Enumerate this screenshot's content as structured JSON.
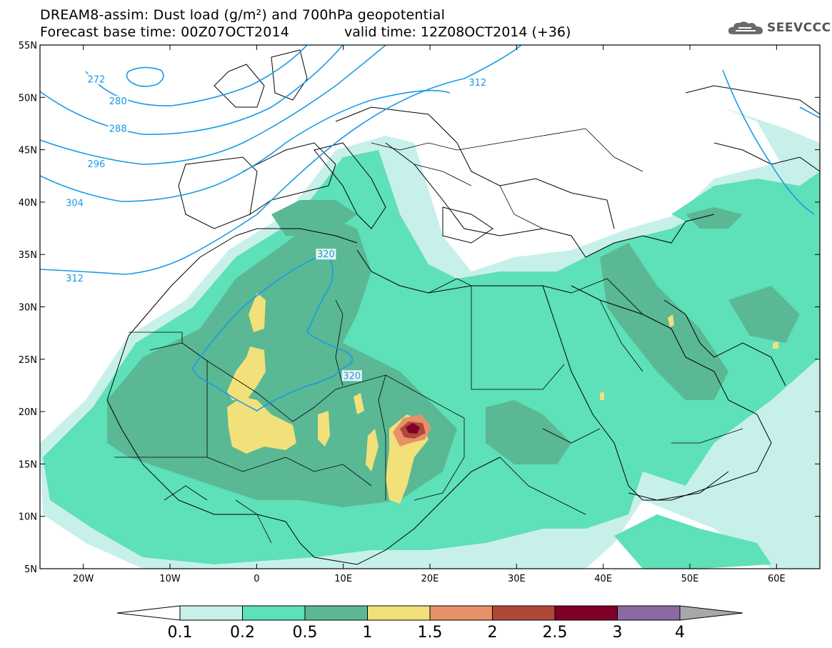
{
  "header": {
    "title": "DREAM8-assim: Dust load (g/m²) and 700hPa geopotential",
    "forecast_base": "Forecast base time: 00Z07OCT2014",
    "valid_time": "valid time: 12Z08OCT2014 (+36)",
    "logo_text": "SEEVCCC",
    "logo_icon": "cloud-icon"
  },
  "chart_data": {
    "type": "heatmap",
    "lon_range": [
      -25,
      65
    ],
    "lat_range": [
      5,
      55
    ],
    "lat_ticks": [
      {
        "value": 55,
        "label": "55N"
      },
      {
        "value": 50,
        "label": "50N"
      },
      {
        "value": 45,
        "label": "45N"
      },
      {
        "value": 40,
        "label": "40N"
      },
      {
        "value": 35,
        "label": "35N"
      },
      {
        "value": 30,
        "label": "30N"
      },
      {
        "value": 25,
        "label": "25N"
      },
      {
        "value": 20,
        "label": "20N"
      },
      {
        "value": 15,
        "label": "15N"
      },
      {
        "value": 10,
        "label": "10N"
      },
      {
        "value": 5,
        "label": "5N"
      }
    ],
    "lon_ticks": [
      {
        "value": -20,
        "label": "20W"
      },
      {
        "value": -10,
        "label": "10W"
      },
      {
        "value": 0,
        "label": "0"
      },
      {
        "value": 10,
        "label": "10E"
      },
      {
        "value": 20,
        "label": "20E"
      },
      {
        "value": 30,
        "label": "30E"
      },
      {
        "value": 40,
        "label": "40E"
      },
      {
        "value": 50,
        "label": "50E"
      },
      {
        "value": 60,
        "label": "60E"
      }
    ],
    "colorbar": {
      "levels": [
        "0.1",
        "0.2",
        "0.5",
        "1",
        "1.5",
        "2",
        "2.5",
        "3",
        "4"
      ],
      "colors": [
        "#c8f0ea",
        "#5ee0b8",
        "#5ab894",
        "#f2e07a",
        "#e8906a",
        "#b04838",
        "#800028",
        "#8a6aa0"
      ],
      "under_color": "#ffffff",
      "over_color": "#a8a8a8"
    },
    "geopotential_contours": [
      {
        "label": "272",
        "label_lon": -18.5,
        "label_lat": 51.7
      },
      {
        "label": "280",
        "label_lon": -16,
        "label_lat": 49.6
      },
      {
        "label": "288",
        "label_lon": -16,
        "label_lat": 47.0
      },
      {
        "label": "296",
        "label_lon": -18.5,
        "label_lat": 43.6
      },
      {
        "label": "304",
        "label_lon": -21,
        "label_lat": 39.9
      },
      {
        "label": "312",
        "label_lon": -21,
        "label_lat": 32.7
      },
      {
        "label": "312",
        "label_lon": 25.5,
        "label_lat": 51.4
      },
      {
        "label": "320",
        "label_lon": 8,
        "label_lat": 35.0
      },
      {
        "label": "320",
        "label_lon": 11,
        "label_lat": 23.4
      }
    ]
  }
}
